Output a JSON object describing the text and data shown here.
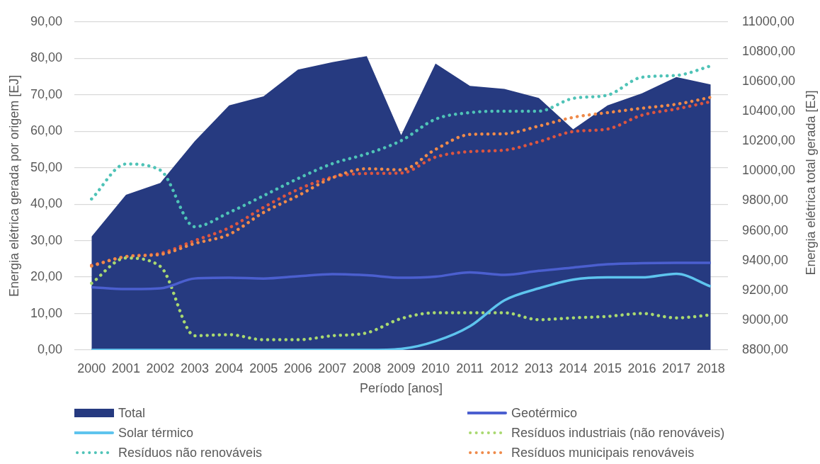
{
  "chart_data": {
    "type": "line",
    "categories": [
      "2000",
      "2001",
      "2002",
      "2003",
      "2004",
      "2005",
      "2006",
      "2007",
      "2008",
      "2009",
      "2010",
      "2011",
      "2012",
      "2013",
      "2014",
      "2015",
      "2016",
      "2017",
      "2018"
    ],
    "xlabel": "Período [anos]",
    "ylabel": "Energia elétrica gerada por origem [EJ]",
    "y2label": "Energia elétrica total gerada [EJ]",
    "ylim": [
      0,
      90
    ],
    "yticks": [
      {
        "value": 0,
        "label": "0,00"
      },
      {
        "value": 10,
        "label": "10,00"
      },
      {
        "value": 20,
        "label": "20,00"
      },
      {
        "value": 30,
        "label": "30,00"
      },
      {
        "value": 40,
        "label": "40,00"
      },
      {
        "value": 50,
        "label": "50,00"
      },
      {
        "value": 60,
        "label": "60,00"
      },
      {
        "value": 70,
        "label": "70,00"
      },
      {
        "value": 80,
        "label": "80,00"
      },
      {
        "value": 90,
        "label": "90,00"
      }
    ],
    "y2lim": [
      8800,
      11000
    ],
    "y2ticks": [
      {
        "value": 8800,
        "label": "8800,00"
      },
      {
        "value": 9000,
        "label": "9000,00"
      },
      {
        "value": 9200,
        "label": "9200,00"
      },
      {
        "value": 9400,
        "label": "9400,00"
      },
      {
        "value": 9600,
        "label": "9600,00"
      },
      {
        "value": 9800,
        "label": "9800,00"
      },
      {
        "value": 10000,
        "label": "10000,00"
      },
      {
        "value": 10200,
        "label": "10200,00"
      },
      {
        "value": 10400,
        "label": "10400,00"
      },
      {
        "value": 10600,
        "label": "10600,00"
      },
      {
        "value": 10800,
        "label": "10800,00"
      },
      {
        "value": 11000,
        "label": "11000,00"
      }
    ],
    "grid": "y",
    "legend": "bottom",
    "series": [
      {
        "name": "Total",
        "type": "area",
        "axis": "y2",
        "color": "#263a80",
        "values": [
          9560,
          9840,
          9920,
          10200,
          10440,
          10500,
          10680,
          10730,
          10770,
          10240,
          10720,
          10570,
          10550,
          10490,
          10280,
          10440,
          10520,
          10630,
          10580
        ]
      },
      {
        "name": "Geotérmico",
        "line_style": "solid",
        "color": "#4b5fcf",
        "values": [
          17.2,
          16.7,
          16.9,
          19.6,
          19.8,
          19.6,
          20.2,
          20.8,
          20.5,
          19.8,
          20.1,
          21.3,
          20.6,
          21.7,
          22.6,
          23.5,
          23.8,
          23.9,
          23.9
        ]
      },
      {
        "name": "Solar térmico",
        "line_style": "solid",
        "color": "#5ec4ee",
        "values": [
          0,
          0,
          0,
          0,
          0,
          0,
          0,
          0,
          0,
          0.3,
          2.4,
          6.5,
          13.6,
          16.9,
          19.3,
          19.9,
          19.9,
          20.9,
          17.4
        ]
      },
      {
        "name": "Resíduos industriais (não renováveis)",
        "line_style": "dotted",
        "color": "#a9d970",
        "values": [
          18.3,
          25.2,
          22.9,
          3.9,
          4.2,
          2.8,
          2.8,
          3.9,
          4.7,
          8.6,
          10.2,
          10.2,
          10.2,
          8.3,
          8.8,
          9.2,
          10.0,
          8.8,
          9.6
        ]
      },
      {
        "name": "Resíduos não renováveis",
        "line_style": "dotted",
        "color": "#4fc3b7",
        "values": [
          41.4,
          51.0,
          49.3,
          33.8,
          37.7,
          42.3,
          47.0,
          51.1,
          53.8,
          57.4,
          63.3,
          65.1,
          65.5,
          65.5,
          69.0,
          69.9,
          74.8,
          75.3,
          77.9
        ]
      },
      {
        "name": "Resíduos municipais renováveis",
        "line_style": "dotted",
        "color": "#ef8a4a",
        "values": [
          23.0,
          25.6,
          26.2,
          29.2,
          31.7,
          37.7,
          42.3,
          47.2,
          49.7,
          49.4,
          55.0,
          59.1,
          59.3,
          61.4,
          63.8,
          65.1,
          66.3,
          67.4,
          69.3
        ]
      },
      {
        "line_style": "dotted",
        "color": "#dc5540",
        "values": [
          23.2,
          25.6,
          26.5,
          30.0,
          33.5,
          39.1,
          44.0,
          47.4,
          48.4,
          48.5,
          52.9,
          54.4,
          54.8,
          57.1,
          59.9,
          60.6,
          64.4,
          66.1,
          68.1
        ]
      }
    ]
  }
}
